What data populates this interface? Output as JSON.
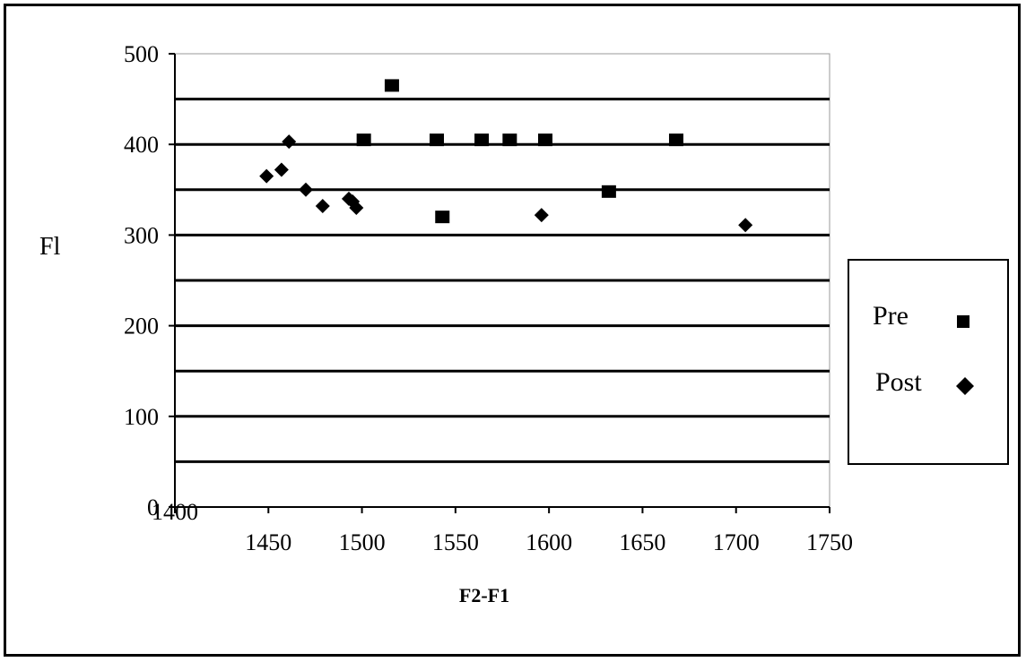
{
  "chart_data": {
    "type": "scatter",
    "title": "",
    "xlabel": "F2-F1",
    "ylabel": "Fl",
    "xlim": [
      1400,
      1750
    ],
    "ylim": [
      0,
      500
    ],
    "x_ticks": [
      1400,
      1450,
      1500,
      1550,
      1600,
      1650,
      1700,
      1750
    ],
    "y_ticks": [
      0,
      100,
      200,
      300,
      400,
      500
    ],
    "grid": "horizontal",
    "legend_position": "right",
    "series": [
      {
        "name": "Pre",
        "marker": "square",
        "color": "#000000",
        "points": [
          {
            "x": 1501,
            "y": 405
          },
          {
            "x": 1516,
            "y": 465
          },
          {
            "x": 1540,
            "y": 405
          },
          {
            "x": 1543,
            "y": 320
          },
          {
            "x": 1564,
            "y": 405
          },
          {
            "x": 1579,
            "y": 405
          },
          {
            "x": 1598,
            "y": 405
          },
          {
            "x": 1632,
            "y": 348
          },
          {
            "x": 1668,
            "y": 405
          }
        ]
      },
      {
        "name": "Post",
        "marker": "diamond",
        "color": "#000000",
        "points": [
          {
            "x": 1449,
            "y": 365
          },
          {
            "x": 1457,
            "y": 372
          },
          {
            "x": 1461,
            "y": 403
          },
          {
            "x": 1470,
            "y": 350
          },
          {
            "x": 1479,
            "y": 332
          },
          {
            "x": 1493,
            "y": 340
          },
          {
            "x": 1495,
            "y": 337
          },
          {
            "x": 1497,
            "y": 330
          },
          {
            "x": 1596,
            "y": 322
          },
          {
            "x": 1705,
            "y": 311
          }
        ]
      }
    ]
  }
}
